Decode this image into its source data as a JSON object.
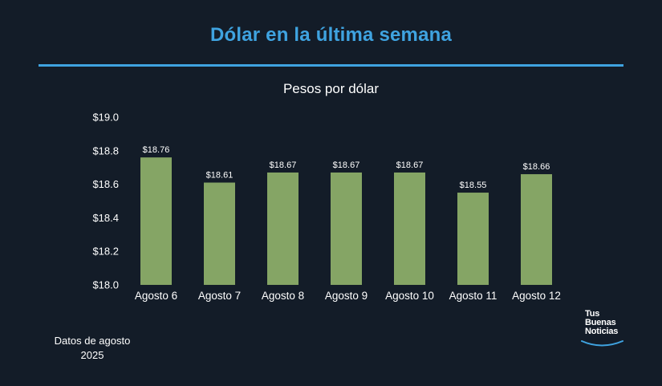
{
  "page": {
    "title": "Dólar en la última semana",
    "footnote_line1": "Datos de agosto",
    "footnote_line2": "2025"
  },
  "logo": {
    "line1": "Tus",
    "line2": "Buenas",
    "line3": "Noticias"
  },
  "colors": {
    "background": "#131c28",
    "accent": "#3fa3e0",
    "bar": "#85a565"
  },
  "chart_data": {
    "type": "bar",
    "title": "Pesos por dólar",
    "xlabel": "",
    "ylabel": "",
    "categories": [
      "Agosto 6",
      "Agosto 7",
      "Agosto 8",
      "Agosto 9",
      "Agosto 10",
      "Agosto 11",
      "Agosto 12"
    ],
    "values": [
      18.76,
      18.61,
      18.67,
      18.67,
      18.67,
      18.55,
      18.66
    ],
    "data_labels": [
      "$18.76",
      "$18.61",
      "$18.67",
      "$18.67",
      "$18.67",
      "$18.55",
      "$18.66"
    ],
    "ylim": [
      18.0,
      19.0
    ],
    "yticks": [
      18.0,
      18.2,
      18.4,
      18.6,
      18.8,
      19.0
    ],
    "ytick_labels": [
      "$18.0",
      "$18.2",
      "$18.4",
      "$18.6",
      "$18.8",
      "$19.0"
    ],
    "grid": false,
    "legend": "none"
  }
}
